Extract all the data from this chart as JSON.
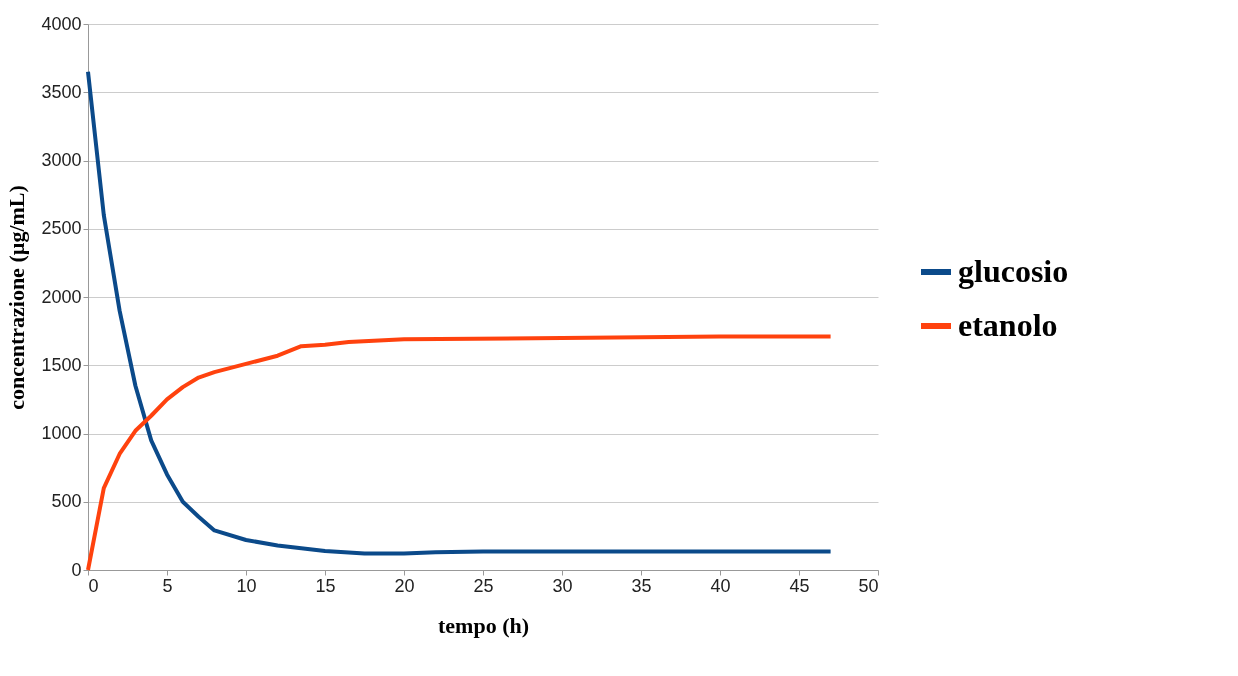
{
  "chart_data": {
    "type": "line",
    "xlabel": "tempo (h)",
    "ylabel": "concentrazione (µg/mL)",
    "xlim": [
      0,
      50
    ],
    "xticks": [
      0,
      5,
      10,
      15,
      20,
      25,
      30,
      35,
      40,
      45,
      50
    ],
    "ylim": [
      0,
      4000
    ],
    "yticks": [
      0,
      500,
      1000,
      1500,
      2000,
      2500,
      3000,
      3500,
      4000
    ],
    "grid": "y",
    "legend": "right",
    "marker": "none",
    "line_style": "solid",
    "series": [
      {
        "name": "glucosio",
        "color": "#0b4a8a",
        "x": [
          0,
          1,
          2,
          3,
          4,
          5,
          6,
          7,
          8,
          10,
          12,
          15,
          17.5,
          20,
          22,
          25,
          30,
          40,
          47
        ],
        "values": [
          3650,
          2600,
          1900,
          1350,
          950,
          700,
          500,
          390,
          290,
          220,
          180,
          140,
          120,
          120,
          130,
          135,
          135,
          135,
          135
        ]
      },
      {
        "name": "etanolo",
        "color": "#ff420e",
        "x": [
          0,
          0.5,
          1,
          2,
          3,
          4,
          5,
          6,
          7,
          8,
          10,
          12,
          13.5,
          15,
          16.5,
          20,
          30,
          40,
          47
        ],
        "values": [
          0,
          300,
          600,
          850,
          1020,
          1130,
          1250,
          1340,
          1410,
          1450,
          1510,
          1570,
          1640,
          1650,
          1670,
          1690,
          1700,
          1710,
          1710
        ]
      }
    ]
  }
}
